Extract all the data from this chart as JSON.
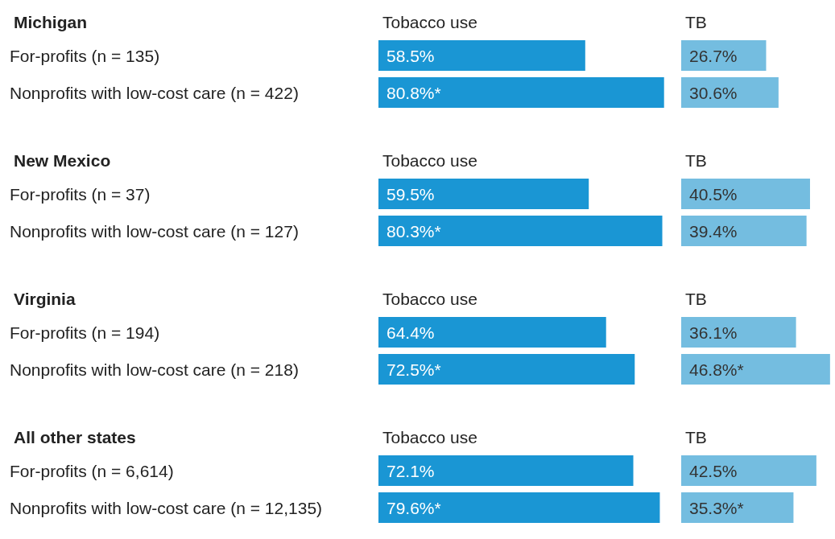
{
  "chart_data": [
    {
      "type": "bar",
      "orientation": "horizontal",
      "title": "Michigan",
      "subtitle": "Tobacco use",
      "categories": [
        "For-profits (n = 135)",
        "Nonprofits with low-cost care (n = 422)"
      ],
      "values": [
        58.5,
        80.8
      ],
      "value_labels": [
        "58.5%",
        "80.8%*"
      ],
      "color": "#1a96d4",
      "tick_labels": "y"
    },
    {
      "type": "bar",
      "orientation": "horizontal",
      "title": "TB",
      "values": [
        26.7,
        30.6
      ],
      "value_labels": [
        "26.7%",
        "30.6%"
      ],
      "color": "#74bde0",
      "tick_labels": false
    },
    {
      "type": "bar",
      "orientation": "horizontal",
      "title": "New Mexico",
      "subtitle": "Tobacco use",
      "categories": [
        "For-profits (n = 37)",
        "Nonprofits with low-cost care (n = 127)"
      ],
      "values": [
        59.5,
        80.3
      ],
      "value_labels": [
        "59.5%",
        "80.3%*"
      ],
      "color": "#1a96d4",
      "tick_labels": "y"
    },
    {
      "type": "bar",
      "orientation": "horizontal",
      "title": "TB",
      "values": [
        40.5,
        39.4
      ],
      "value_labels": [
        "40.5%",
        "39.4%"
      ],
      "color": "#74bde0",
      "tick_labels": false
    },
    {
      "type": "bar",
      "orientation": "horizontal",
      "title": "Virginia",
      "subtitle": "Tobacco use",
      "categories": [
        "For-profits (n = 194)",
        "Nonprofits with low-cost care (n = 218)"
      ],
      "values": [
        64.4,
        72.5
      ],
      "value_labels": [
        "64.4%",
        "72.5%*"
      ],
      "color": "#1a96d4",
      "tick_labels": "y"
    },
    {
      "type": "bar",
      "orientation": "horizontal",
      "title": "TB",
      "values": [
        36.1,
        46.8
      ],
      "value_labels": [
        "36.1%",
        "46.8%*"
      ],
      "color": "#74bde0",
      "tick_labels": false
    },
    {
      "type": "bar",
      "orientation": "horizontal",
      "title": "All other states",
      "subtitle": "Tobacco use",
      "categories": [
        "For-profits (n = 6,614)",
        "Nonprofits with low-cost care (n = 12,135)"
      ],
      "values": [
        72.1,
        79.6
      ],
      "value_labels": [
        "72.1%",
        "79.6%*"
      ],
      "color": "#1a96d4",
      "tick_labels": "y"
    },
    {
      "type": "bar",
      "orientation": "horizontal",
      "title": "TB",
      "values": [
        42.5,
        35.3
      ],
      "value_labels": [
        "42.5%",
        "35.3%*"
      ],
      "color": "#74bde0",
      "tick_labels": false
    }
  ]
}
